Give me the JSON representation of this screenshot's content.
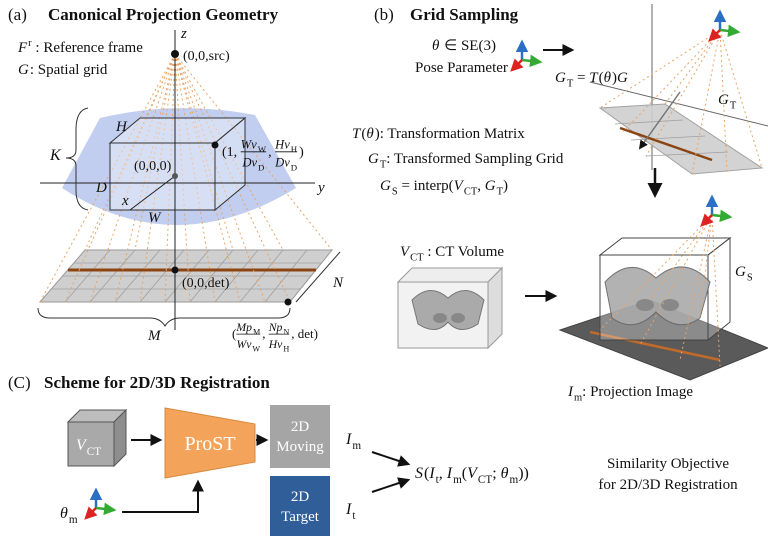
{
  "panel_a": {
    "tag": "(a)",
    "title": "Canonical Projection Geometry",
    "frame": [
      {
        "i": "F"
      },
      {
        "sup": "r"
      },
      {
        "t": " : Reference frame"
      }
    ],
    "grid": [
      {
        "i": "G"
      },
      {
        "t": ": Spatial grid"
      }
    ],
    "z": "z",
    "y": "y",
    "x": "x",
    "source": "(0,0,src)",
    "origin": "(0,0,0)",
    "detector": "(0,0,det)",
    "K": "K",
    "H": "H",
    "D": "D",
    "W": "W",
    "N": "N",
    "M": "M",
    "corner": [
      {
        "t": "(1, "
      },
      {
        "frac": {
          "num": [
            {
              "i": "Wv"
            },
            {
              "sub": "W"
            }
          ],
          "den": [
            {
              "i": "Dv"
            },
            {
              "sub": "D"
            }
          ]
        }
      },
      {
        "t": ", "
      },
      {
        "frac": {
          "num": [
            {
              "i": "Hv"
            },
            {
              "sub": "H"
            }
          ],
          "den": [
            {
              "i": "Dv"
            },
            {
              "sub": "D"
            }
          ]
        }
      },
      {
        "t": ")"
      }
    ],
    "det_corner": [
      {
        "t": "("
      },
      {
        "frac": {
          "num": [
            {
              "i": "Mp"
            },
            {
              "sub": "M"
            }
          ],
          "den": [
            {
              "i": "Wv"
            },
            {
              "sub": "W"
            }
          ]
        }
      },
      {
        "t": ", "
      },
      {
        "frac": {
          "num": [
            {
              "i": "Np"
            },
            {
              "sub": "N"
            }
          ],
          "den": [
            {
              "i": "Hv"
            },
            {
              "sub": "H"
            }
          ]
        }
      },
      {
        "t": ", det)"
      }
    ]
  },
  "panel_b": {
    "tag": "(b)",
    "title": "Grid Sampling",
    "pose": [
      {
        "i": "θ"
      },
      {
        "t": " ∈ SE(3)"
      }
    ],
    "pose_caption": "Pose Parameter",
    "gt_eq": [
      {
        "i": "G"
      },
      {
        "sub": "T"
      },
      {
        "t": " = "
      },
      {
        "i": "T"
      },
      {
        "t": "("
      },
      {
        "i": "θ"
      },
      {
        "t": ")"
      },
      {
        "i": "G"
      }
    ],
    "gt_label": [
      {
        "i": "G"
      },
      {
        "sub": "T"
      }
    ],
    "transform": [
      {
        "i": "T"
      },
      {
        "t": "("
      },
      {
        "i": "θ"
      },
      {
        "t": "): Transformation Matrix"
      }
    ],
    "grid_def": [
      {
        "i": "G"
      },
      {
        "sub": "T"
      },
      {
        "t": ": Transformed Sampling Grid"
      }
    ],
    "interp": [
      {
        "i": "G"
      },
      {
        "sub": "S"
      },
      {
        "t": " = interp("
      },
      {
        "i": "V"
      },
      {
        "sub": "CT"
      },
      {
        "t": ", "
      },
      {
        "i": "G"
      },
      {
        "sub": "T"
      },
      {
        "t": ")"
      }
    ],
    "volume": [
      {
        "i": "V"
      },
      {
        "sub": "CT"
      },
      {
        "t": " : CT Volume"
      }
    ],
    "gs_label": [
      {
        "i": "G"
      },
      {
        "sub": "S"
      }
    ],
    "projection": [
      {
        "i": "I"
      },
      {
        "sub": "m"
      },
      {
        "t": ": Projection Image"
      }
    ]
  },
  "panel_c": {
    "tag": "(C)",
    "title": "Scheme for 2D/3D Registration",
    "vct": [
      {
        "i": "V"
      },
      {
        "sub": "CT"
      }
    ],
    "network": "ProST",
    "moving": [
      "2D",
      "Moving"
    ],
    "im": [
      {
        "i": "I"
      },
      {
        "sub": "m"
      }
    ],
    "target": [
      "2D",
      "Target"
    ],
    "it": [
      {
        "i": "I"
      },
      {
        "sub": "t"
      }
    ],
    "theta": [
      {
        "i": "θ"
      },
      {
        "sub": "m"
      }
    ],
    "similarity": [
      {
        "i": "S"
      },
      {
        "t": "("
      },
      {
        "i": "I"
      },
      {
        "sub": "t"
      },
      {
        "t": ", "
      },
      {
        "i": "I"
      },
      {
        "sub": "m"
      },
      {
        "t": "("
      },
      {
        "i": "V"
      },
      {
        "sub": "CT"
      },
      {
        "t": "; "
      },
      {
        "i": "θ"
      },
      {
        "sub": "m"
      },
      {
        "t": "))"
      }
    ],
    "objective": [
      "Similarity Objective",
      "for 2D/3D Registration"
    ]
  }
}
